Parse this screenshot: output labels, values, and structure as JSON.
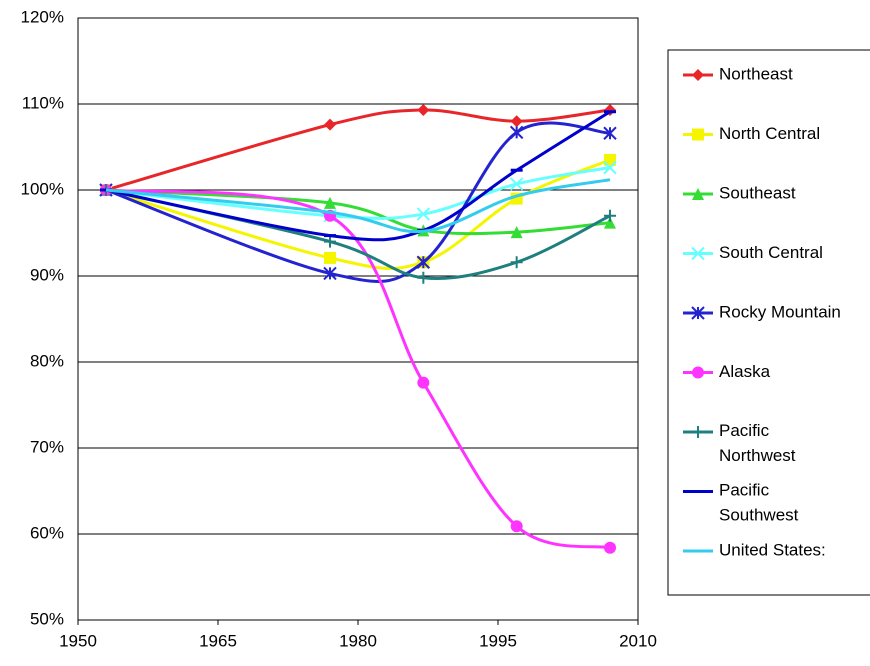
{
  "chart_data": {
    "type": "line",
    "x": [
      1953,
      1977,
      1987,
      1997,
      2007
    ],
    "xlim": [
      1950,
      2010
    ],
    "xticks": [
      1950,
      1965,
      1980,
      1995,
      2010
    ],
    "ylim": [
      50,
      120
    ],
    "yticks": [
      {
        "value": 50,
        "label": "50%"
      },
      {
        "value": 60,
        "label": "60%"
      },
      {
        "value": 70,
        "label": "70%"
      },
      {
        "value": 80,
        "label": "80%"
      },
      {
        "value": 90,
        "label": "90%"
      },
      {
        "value": 100,
        "label": "100%"
      },
      {
        "value": 110,
        "label": "110%"
      },
      {
        "value": 120,
        "label": "120%"
      }
    ],
    "grid": true,
    "legend": "right",
    "series": [
      {
        "name": "Northeast",
        "color": "#e8262a",
        "marker": "diamond",
        "values": [
          100,
          107.6,
          109.3,
          108.0,
          109.3
        ]
      },
      {
        "name": "North Central",
        "color": "#f5f500",
        "marker": "square",
        "values": [
          100,
          92.1,
          91.6,
          99.0,
          103.5
        ]
      },
      {
        "name": "Southeast",
        "color": "#33dd33",
        "marker": "triangle",
        "values": [
          100,
          98.5,
          95.3,
          95.1,
          96.2
        ]
      },
      {
        "name": "South Central",
        "color": "#66ffff",
        "marker": "x",
        "values": [
          100,
          97.0,
          97.2,
          100.7,
          102.6
        ]
      },
      {
        "name": "Rocky Mountain",
        "color": "#2323d0",
        "marker": "asterisk",
        "values": [
          100,
          90.3,
          91.6,
          106.7,
          106.6
        ]
      },
      {
        "name": "Alaska",
        "color": "#ff33ff",
        "marker": "circle",
        "values": [
          100,
          97.0,
          77.6,
          60.9,
          58.4
        ]
      },
      {
        "name": "Pacific\nNorthwest",
        "color": "#1f7f7f",
        "marker": "plus",
        "values": [
          100,
          94.0,
          89.8,
          91.6,
          97.0
        ]
      },
      {
        "name": "Pacific\nSouthwest",
        "color": "#0000cc",
        "marker": "dash",
        "values": [
          100,
          94.7,
          95.3,
          102.3,
          109.1
        ]
      },
      {
        "name": "United States:",
        "color": "#33ccee",
        "marker": "none",
        "values": [
          100,
          97.4,
          95.2,
          99.3,
          101.2
        ]
      }
    ]
  }
}
